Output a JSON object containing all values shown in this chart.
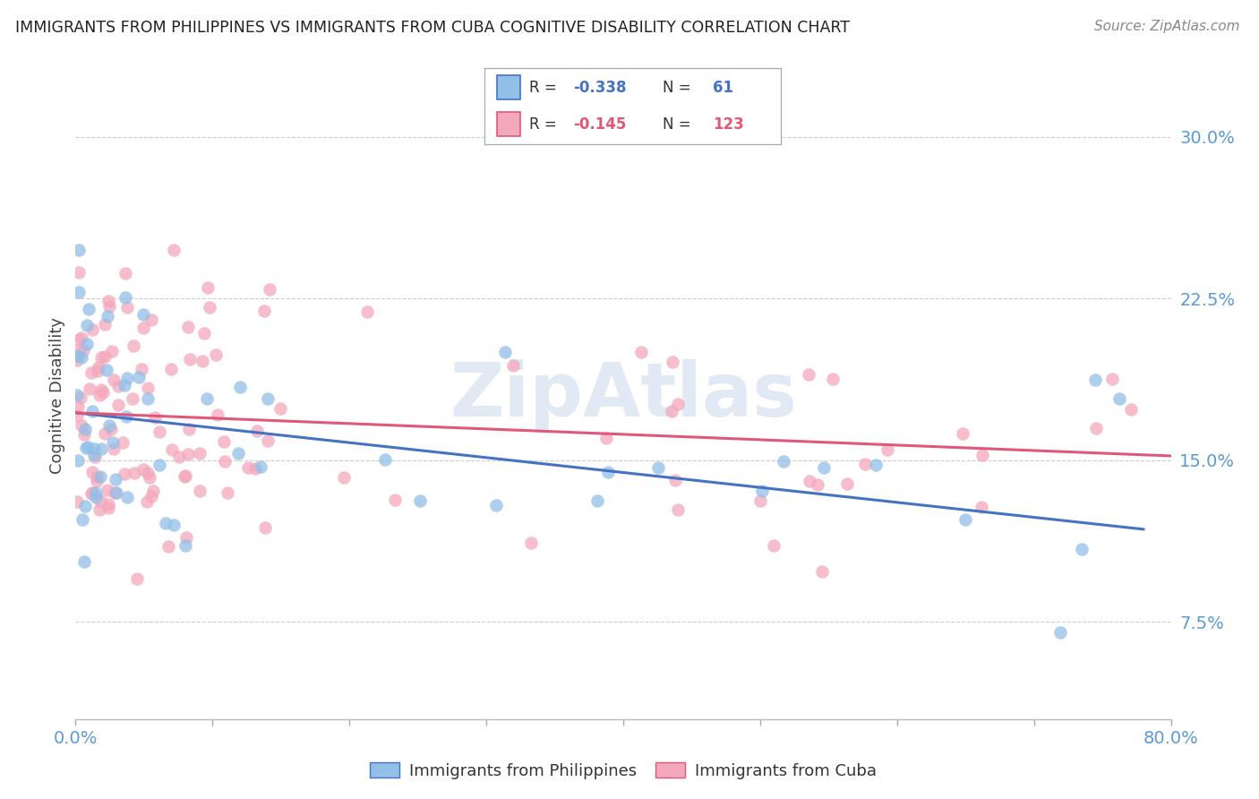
{
  "title": "IMMIGRANTS FROM PHILIPPINES VS IMMIGRANTS FROM CUBA COGNITIVE DISABILITY CORRELATION CHART",
  "source": "Source: ZipAtlas.com",
  "ylabel": "Cognitive Disability",
  "xlim": [
    0.0,
    0.8
  ],
  "ylim": [
    0.03,
    0.33
  ],
  "yticks": [
    0.075,
    0.15,
    0.225,
    0.3
  ],
  "ytick_labels": [
    "7.5%",
    "15.0%",
    "22.5%",
    "30.0%"
  ],
  "xticks": [
    0.0,
    0.1,
    0.2,
    0.3,
    0.4,
    0.5,
    0.6,
    0.7,
    0.8
  ],
  "xtick_labels": [
    "0.0%",
    "",
    "",
    "",
    "",
    "",
    "",
    "",
    "80.0%"
  ],
  "philippines_R": -0.338,
  "philippines_N": 61,
  "cuba_R": -0.145,
  "cuba_N": 123,
  "philippines_color": "#92BFE8",
  "cuba_color": "#F4A8BC",
  "philippines_line_color": "#4472C4",
  "cuba_line_color": "#E05878",
  "background_color": "#FFFFFF",
  "watermark_color": "#C8D8EC",
  "grid_color": "#CCCCCC",
  "tick_color": "#5B9BD5",
  "title_color": "#222222",
  "source_color": "#888888",
  "ylabel_color": "#444444",
  "legend_border_color": "#AAAAAA",
  "ph_line_start_y": 0.172,
  "ph_line_end_y": 0.118,
  "cu_line_start_y": 0.172,
  "cu_line_end_y": 0.152,
  "ph_line_x_start": 0.0,
  "ph_line_x_end": 0.78,
  "cu_line_x_start": 0.0,
  "cu_line_x_end": 0.8
}
